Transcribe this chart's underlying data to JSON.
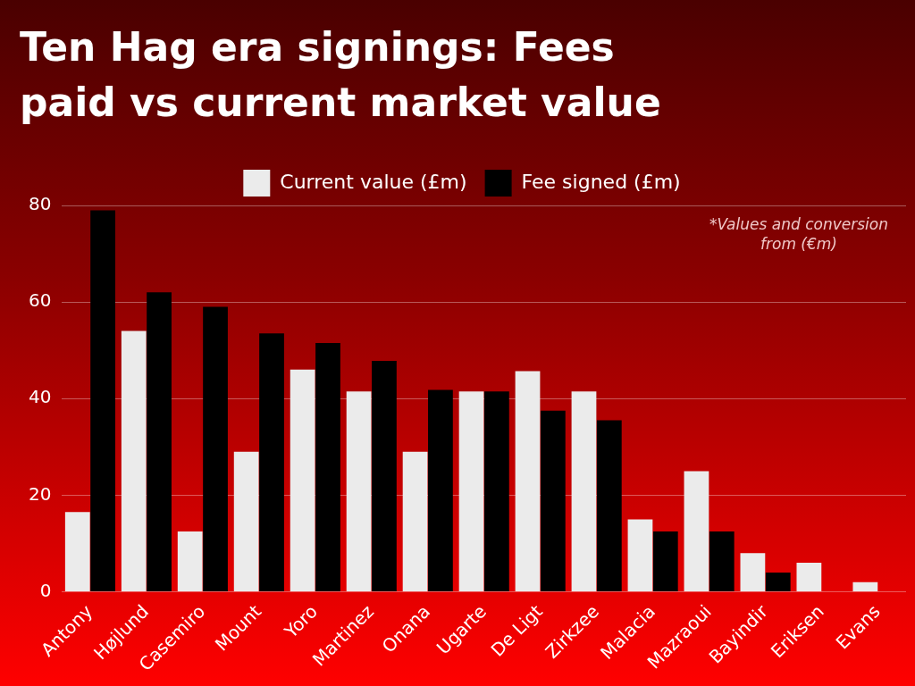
{
  "chart_data": {
    "type": "bar",
    "title": "Ten Hag era signings: Fees paid vs current market value",
    "categories": [
      "Antony",
      "Højlund",
      "Casemiro",
      "Mount",
      "Yoro",
      "Martinez",
      "Onana",
      "Ugarte",
      "De Ligt",
      "Zirkzee",
      "Malacia",
      "Mazraoui",
      "Bayindir",
      "Eriksen",
      "Evans"
    ],
    "series": [
      {
        "name": "Current value (£m)",
        "color": "#ebebeb",
        "values": [
          16.5,
          54,
          12.5,
          29,
          46,
          41.5,
          29,
          41.5,
          45.7,
          41.5,
          15,
          25,
          8,
          6,
          2
        ]
      },
      {
        "name": "Fee signed (£m)",
        "color": "#000000",
        "values": [
          79,
          62,
          59,
          53.5,
          51.5,
          47.8,
          41.8,
          41.5,
          37.5,
          35.5,
          12.5,
          12.5,
          4,
          0,
          0
        ]
      }
    ],
    "ylim": [
      0,
      80
    ],
    "yticks": [
      0,
      20,
      40,
      60,
      80
    ],
    "grid": "y",
    "legend": "top",
    "annotations": [
      "*Values and conversion from (€m)"
    ]
  }
}
